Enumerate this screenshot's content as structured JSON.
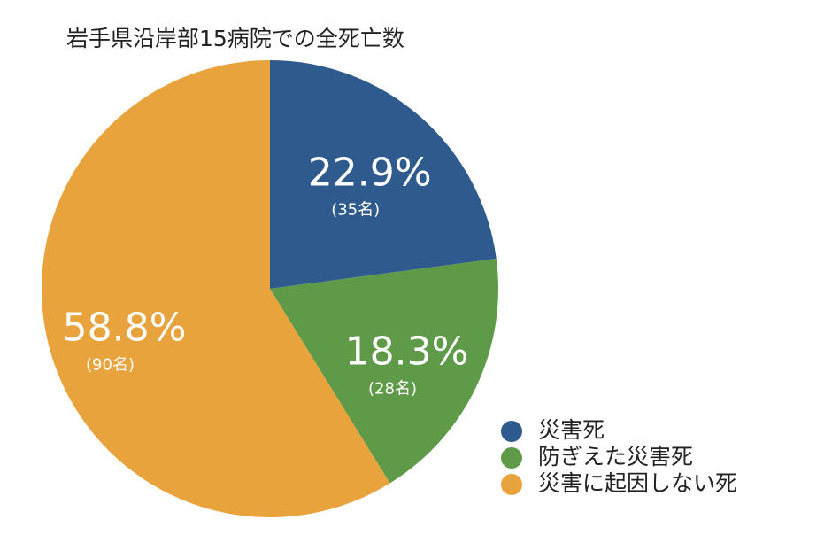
{
  "chart_data": {
    "type": "pie",
    "title": "岩手県沿岸部15病院での全死亡数",
    "categories": [
      "災害死",
      "防ぎえた災害死",
      "災害に起因しない死"
    ],
    "values": [
      22.9,
      18.3,
      58.8
    ],
    "value_labels": [
      "22.9%",
      "18.3%",
      "58.8%"
    ],
    "count_labels": [
      "(35名)",
      "(28名)",
      "(90名)"
    ],
    "colors": [
      "#2e5a8e",
      "#5e9a48",
      "#e8a33d"
    ],
    "legend": "bottom-right"
  }
}
